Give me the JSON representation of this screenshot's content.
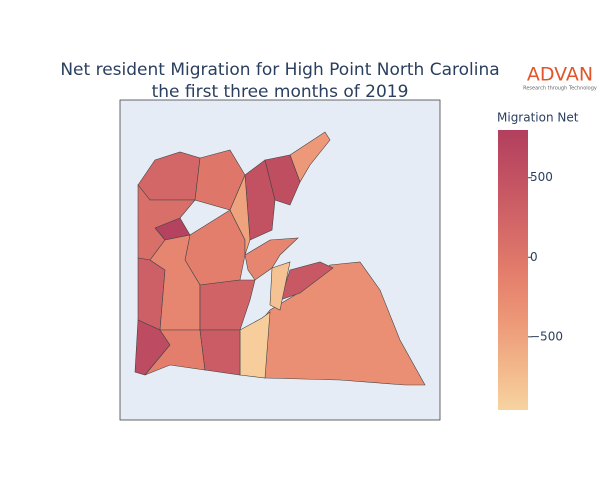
{
  "chart_data": {
    "type": "choropleth",
    "title": "Net resident Migration for High Point North Carolina",
    "subtitle": "the first three months of 2019",
    "logo": {
      "name": "ADVAN",
      "tagline": "Research through Technology"
    },
    "colorbar_title": "Migration Net",
    "colorscale": [
      "#f7d3a0",
      "#f2b489",
      "#ec9576",
      "#e37c6b",
      "#d26667",
      "#c25162",
      "#b23f5e"
    ],
    "clim": [
      -960,
      800
    ],
    "cticks": [
      500,
      0,
      {
        "value": -500,
        "label": "−500"
      }
    ],
    "values": [
      -300,
      -900,
      400,
      -800,
      -200,
      500,
      -400,
      550,
      200,
      0,
      750,
      100,
      -100,
      300,
      -200,
      250,
      600,
      -100,
      350,
      -500
    ]
  }
}
